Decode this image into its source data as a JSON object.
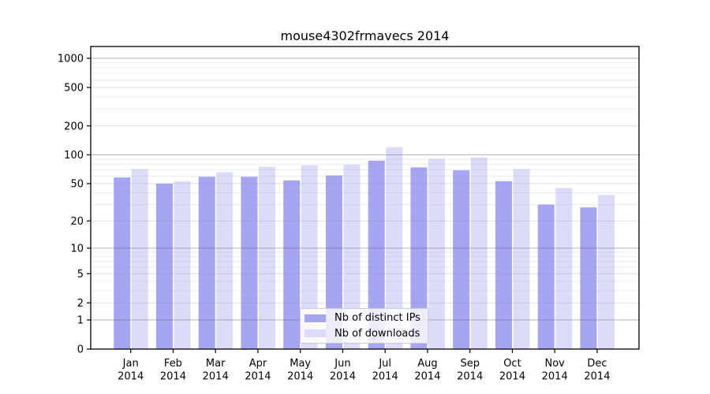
{
  "chart_data": {
    "type": "bar",
    "title": "mouse4302frmavecs 2014",
    "categories": [
      "Jan",
      "Feb",
      "Mar",
      "Apr",
      "May",
      "Jun",
      "Jul",
      "Aug",
      "Sep",
      "Oct",
      "Nov",
      "Dec"
    ],
    "category_year": "2014",
    "series": [
      {
        "name": "Nb of distinct IPs",
        "color": "#a5a5f3",
        "values": [
          58,
          50,
          59,
          59,
          54,
          61,
          87,
          74,
          69,
          53,
          30,
          28
        ]
      },
      {
        "name": "Nb of downloads",
        "color": "#dcdcf9",
        "values": [
          71,
          53,
          66,
          75,
          78,
          79,
          120,
          91,
          94,
          71,
          45,
          38
        ]
      }
    ],
    "yscale": "log1p",
    "yticks": [
      0,
      1,
      2,
      5,
      10,
      20,
      50,
      100,
      200,
      500,
      1000
    ],
    "ylim": [
      0,
      1330
    ],
    "grid": true,
    "legend_position": "lower center",
    "colors": {
      "axis": "#000000",
      "grid_major": "rgba(105,105,105,0.5)",
      "grid_medium": "rgba(150,150,150,0.3)",
      "grid_minor": "rgba(170,170,170,0.22)",
      "text": "#000000",
      "legend_border": "#cccccc"
    }
  }
}
